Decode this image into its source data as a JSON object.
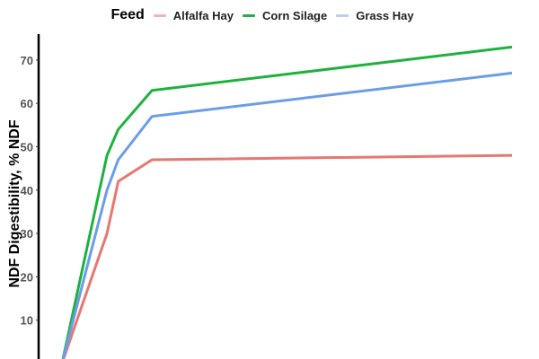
{
  "legend": {
    "title": "Feed",
    "items": [
      {
        "label": "Alfalfa Hay",
        "color": "#E8776F"
      },
      {
        "label": "Corn Silage",
        "color": "#1FB140"
      },
      {
        "label": "Grass Hay",
        "color": "#6B9DE8"
      }
    ]
  },
  "axis": {
    "ylabel": "NDF Digestibility, % NDF",
    "yticks": [
      "10",
      "20",
      "30",
      "40",
      "50",
      "60",
      "70"
    ]
  },
  "chart_data": {
    "type": "line",
    "title": "",
    "xlabel": "",
    "ylabel": "NDF Digestibility, % NDF",
    "x": [
      0,
      24,
      30,
      48,
      240
    ],
    "series": [
      {
        "name": "Alfalfa Hay",
        "color": "#E8776F",
        "values": [
          0,
          30,
          42,
          47,
          48
        ]
      },
      {
        "name": "Corn Silage",
        "color": "#1FB140",
        "values": [
          0,
          48,
          54,
          63,
          73
        ]
      },
      {
        "name": "Grass Hay",
        "color": "#6B9DE8",
        "values": [
          0,
          40,
          47,
          57,
          67
        ]
      }
    ],
    "yticks": [
      10,
      20,
      30,
      40,
      50,
      60,
      70
    ],
    "ylim": [
      0,
      77
    ],
    "grid": false,
    "legend_position": "top"
  }
}
